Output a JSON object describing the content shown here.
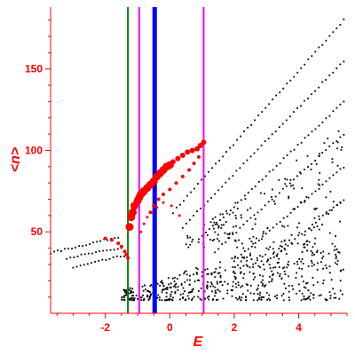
{
  "chart_data": {
    "type": "scatter",
    "xlabel": "E",
    "ylabel": "<n>",
    "xlim": [
      -3.7,
      5.5
    ],
    "ylim": [
      0,
      188
    ],
    "xticks": [
      -2,
      0,
      2,
      4
    ],
    "xtick_labels": [
      "-2",
      "0",
      "2",
      "4"
    ],
    "yticks": [
      50,
      100,
      150
    ],
    "ytick_labels": [
      "50",
      "100",
      "150"
    ],
    "grid": false,
    "colors": {
      "axes": "#ff0000",
      "background_points": "#000000",
      "highlight_points": "#ff0000",
      "vline_green": "#008000",
      "vline_magenta": "#ff00ff",
      "vline_blue": "#0000ff"
    },
    "vertical_lines": [
      {
        "x": -1.3,
        "color": "#008000",
        "style": "thin"
      },
      {
        "x": -0.95,
        "color": "#ff00ff",
        "style": "thin"
      },
      {
        "x": -0.47,
        "color": "#0000ff",
        "style": "thick"
      },
      {
        "x": 1.05,
        "color": "#ff00ff",
        "style": "thin"
      }
    ],
    "background_bands": [
      {
        "x0": 0.1,
        "y0": 62,
        "x1": 5.4,
        "y1": 180
      },
      {
        "x0": 0.4,
        "y0": 53,
        "x1": 5.4,
        "y1": 155
      },
      {
        "x0": 0.9,
        "y0": 45,
        "x1": 5.4,
        "y1": 130
      },
      {
        "x0": 1.4,
        "y0": 38,
        "x1": 5.4,
        "y1": 110
      },
      {
        "x0": 2.0,
        "y0": 32,
        "x1": 5.4,
        "y1": 90
      },
      {
        "x0": 2.8,
        "y0": 28,
        "x1": 5.4,
        "y1": 70
      },
      {
        "x0": -3.7,
        "y0": 37,
        "x1": -1.6,
        "y1": 47
      },
      {
        "x0": -3.2,
        "y0": 34,
        "x1": -1.5,
        "y1": 40
      },
      {
        "x0": -3.0,
        "y0": 28,
        "x1": -1.3,
        "y1": 36
      }
    ],
    "dense_region": {
      "x": [
        -1.5,
        5.4
      ],
      "y": [
        8,
        45
      ]
    },
    "highlight_series": [
      {
        "x": [
          -2.0,
          -1.8,
          -1.6,
          -1.5,
          -1.4,
          -1.35,
          -1.3
        ],
        "y": [
          46,
          45,
          43,
          41,
          38,
          36,
          34
        ],
        "size": "small"
      },
      {
        "x": [
          -1.25,
          -1.2,
          -1.15,
          -1.1,
          -1.0,
          -0.95,
          -0.9,
          -0.85,
          -0.8,
          -0.7,
          -0.6,
          -0.5,
          -0.4,
          -0.3,
          -0.2,
          -0.1,
          0.0
        ],
        "y": [
          53,
          59,
          62,
          66,
          69,
          71,
          73,
          74,
          75,
          77,
          79,
          81,
          84,
          86,
          88,
          90,
          91
        ],
        "size": "large"
      },
      {
        "x": [
          0.1,
          0.25,
          0.4,
          0.55,
          0.7,
          0.85,
          0.95,
          1.05
        ],
        "y": [
          93,
          95,
          97,
          99,
          100,
          101,
          103,
          105
        ],
        "size": "medium"
      },
      {
        "x": [
          -0.6,
          -0.5,
          -0.35,
          -0.2,
          0.0,
          0.2,
          0.4,
          0.6,
          0.75,
          0.9
        ],
        "y": [
          62,
          66,
          70,
          73,
          76,
          80,
          84,
          88,
          92,
          96
        ],
        "size": "small"
      },
      {
        "x": [
          -0.9,
          -0.8,
          -0.7,
          -0.55,
          -0.4,
          -0.2,
          0.05,
          0.3
        ],
        "y": [
          50,
          55,
          59,
          62,
          65,
          68,
          66,
          60
        ],
        "size": "tiny"
      }
    ]
  }
}
